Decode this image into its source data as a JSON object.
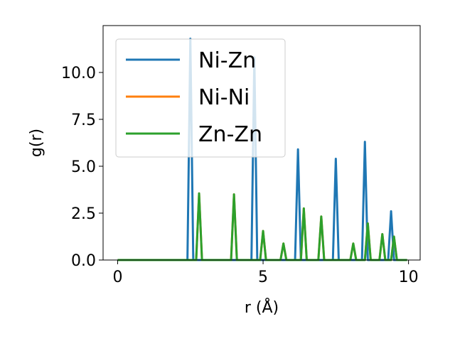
{
  "chart_data": {
    "type": "line",
    "title": "",
    "xlabel": "r (Å)",
    "ylabel": "g(r)",
    "xlim": [
      -0.5,
      10.4
    ],
    "ylim": [
      0,
      12.5
    ],
    "x_ticks": [
      0,
      5,
      10
    ],
    "y_ticks": [
      0.0,
      2.5,
      5.0,
      7.5,
      10.0
    ],
    "x_tick_labels": [
      "0",
      "5",
      "10"
    ],
    "y_tick_labels": [
      "0.0",
      "2.5",
      "5.0",
      "7.5",
      "10.0"
    ],
    "grid": false,
    "legend_position": "top-left",
    "x_range": [
      0,
      9.95
    ],
    "series": [
      {
        "name": "Ni-Zn",
        "color": "#1f77b4",
        "peaks": [
          {
            "r": 2.5,
            "g": 11.8
          },
          {
            "r": 4.7,
            "g": 10.8
          },
          {
            "r": 6.2,
            "g": 5.9
          },
          {
            "r": 7.5,
            "g": 5.4
          },
          {
            "r": 8.5,
            "g": 6.3
          },
          {
            "r": 9.4,
            "g": 2.6
          }
        ]
      },
      {
        "name": "Ni-Ni",
        "color": "#ff7f0e",
        "peaks": [
          {
            "r": 2.8,
            "g": 3.55
          },
          {
            "r": 4.0,
            "g": 3.5
          },
          {
            "r": 5.0,
            "g": 1.55
          },
          {
            "r": 5.7,
            "g": 0.88
          },
          {
            "r": 6.4,
            "g": 2.75
          },
          {
            "r": 7.0,
            "g": 2.32
          },
          {
            "r": 8.1,
            "g": 0.88
          },
          {
            "r": 8.6,
            "g": 1.95
          },
          {
            "r": 9.1,
            "g": 1.38
          },
          {
            "r": 9.5,
            "g": 1.25
          }
        ]
      },
      {
        "name": "Zn-Zn",
        "color": "#2ca02c",
        "peaks": [
          {
            "r": 2.8,
            "g": 3.55
          },
          {
            "r": 4.0,
            "g": 3.5
          },
          {
            "r": 5.0,
            "g": 1.55
          },
          {
            "r": 5.7,
            "g": 0.88
          },
          {
            "r": 6.4,
            "g": 2.75
          },
          {
            "r": 7.0,
            "g": 2.32
          },
          {
            "r": 8.1,
            "g": 0.88
          },
          {
            "r": 8.6,
            "g": 1.95
          },
          {
            "r": 9.1,
            "g": 1.38
          },
          {
            "r": 9.5,
            "g": 1.25
          }
        ]
      }
    ]
  }
}
